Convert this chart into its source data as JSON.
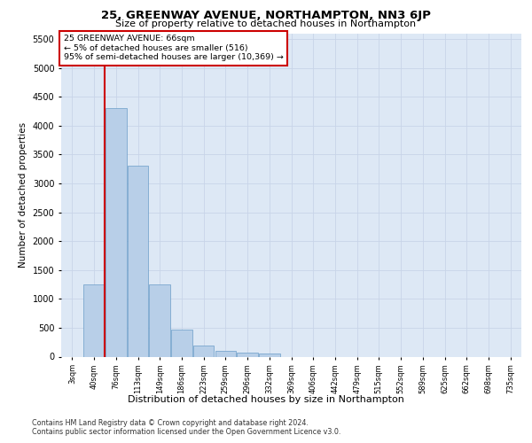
{
  "title": "25, GREENWAY AVENUE, NORTHAMPTON, NN3 6JP",
  "subtitle": "Size of property relative to detached houses in Northampton",
  "xlabel": "Distribution of detached houses by size in Northampton",
  "ylabel": "Number of detached properties",
  "annotation_line1": "25 GREENWAY AVENUE: 66sqm",
  "annotation_line2": "← 5% of detached houses are smaller (516)",
  "annotation_line3": "95% of semi-detached houses are larger (10,369) →",
  "footer1": "Contains HM Land Registry data © Crown copyright and database right 2024.",
  "footer2": "Contains public sector information licensed under the Open Government Licence v3.0.",
  "bar_color": "#b8cfe8",
  "bar_edge_color": "#6a9cc8",
  "vline_color": "#cc0000",
  "annotation_box_color": "#ffffff",
  "annotation_box_edge": "#cc0000",
  "grid_color": "#c8d4e8",
  "background_color": "#dde8f5",
  "categories": [
    "3sqm",
    "40sqm",
    "76sqm",
    "113sqm",
    "149sqm",
    "186sqm",
    "223sqm",
    "259sqm",
    "296sqm",
    "332sqm",
    "369sqm",
    "406sqm",
    "442sqm",
    "479sqm",
    "515sqm",
    "552sqm",
    "589sqm",
    "625sqm",
    "662sqm",
    "698sqm",
    "735sqm"
  ],
  "values": [
    0,
    1250,
    4300,
    3300,
    1250,
    475,
    190,
    100,
    70,
    50,
    0,
    0,
    0,
    0,
    0,
    0,
    0,
    0,
    0,
    0,
    0
  ],
  "vline_x_pos": 1.5,
  "ylim": [
    0,
    5600
  ],
  "yticks": [
    0,
    500,
    1000,
    1500,
    2000,
    2500,
    3000,
    3500,
    4000,
    4500,
    5000,
    5500
  ]
}
